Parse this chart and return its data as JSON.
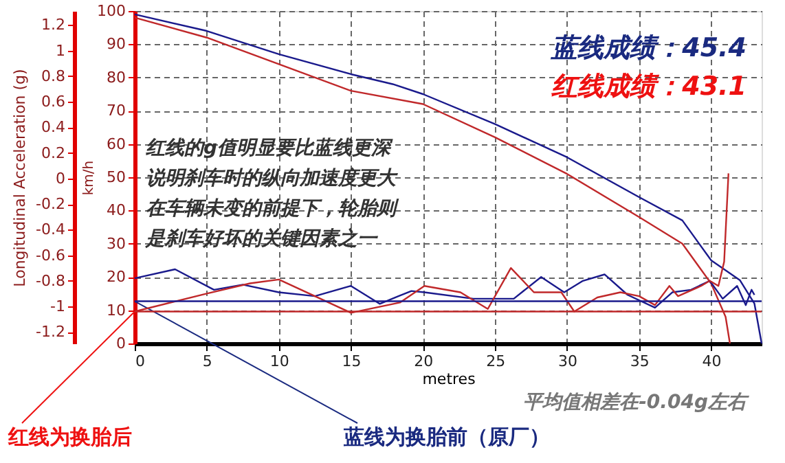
{
  "chart_data": {
    "type": "line",
    "xlabel": "metres",
    "ylabel": "km/h",
    "y2label": "Longitudinal Acceleration (g)",
    "xlim": [
      0,
      43.5
    ],
    "xticks": [
      0,
      5,
      10,
      15,
      20,
      25,
      30,
      35,
      40
    ],
    "ylim": [
      0,
      100
    ],
    "yticks": [
      0,
      10,
      20,
      30,
      40,
      50,
      60,
      70,
      80,
      90,
      100
    ],
    "y2lim": [
      -1.29,
      1.31
    ],
    "y2ticks": [
      -1.2,
      -1,
      -0.8,
      -0.6,
      -0.4,
      -0.2,
      0,
      0.2,
      0.4,
      0.6,
      0.8,
      1,
      1.2
    ],
    "grid": true,
    "marker": "none",
    "line_style": "solid",
    "series": [
      {
        "color": "#1a1a8c",
        "x": [
          0,
          5,
          10,
          15,
          17.9,
          20,
          25,
          30,
          35,
          38,
          40,
          42,
          43,
          43.5
        ],
        "values": [
          99,
          94,
          87,
          81,
          78,
          75,
          66,
          56,
          44,
          37,
          25,
          19,
          12,
          0
        ]
      },
      {
        "color": "#c0282a",
        "x": [
          0,
          5,
          10,
          15,
          20,
          25,
          30,
          35,
          38,
          40,
          41,
          41.3
        ],
        "values": [
          98,
          92,
          84,
          76,
          72,
          62,
          51,
          38,
          30,
          18,
          8,
          0
        ]
      },
      {
        "color": "#1a1a8c",
        "axis": "y2",
        "x": [
          0,
          2.8,
          5.5,
          7.5,
          10,
          12.5,
          15,
          17,
          18.3,
          19.2,
          20.1,
          23.5,
          26.3,
          28.2,
          29.8,
          31.1,
          32.6,
          34.2,
          36.1,
          37.3,
          38.6,
          39.9,
          40.8,
          41.8,
          42.4,
          42.8,
          43.0
        ],
        "values": [
          -0.78,
          -0.71,
          -0.87,
          -0.83,
          -0.89,
          -0.92,
          -0.84,
          -0.98,
          -0.92,
          -0.88,
          -0.89,
          -0.94,
          -0.94,
          -0.77,
          -0.89,
          -0.8,
          -0.75,
          -0.91,
          -1.01,
          -0.89,
          -0.87,
          -0.8,
          -0.94,
          -0.84,
          -0.99,
          -0.87,
          -0.91
        ]
      },
      {
        "color": "#c0282a",
        "axis": "y2",
        "x": [
          0,
          5,
          8,
          10,
          15,
          18.4,
          20.1,
          22.6,
          24.5,
          26.1,
          27.7,
          29.6,
          30.5,
          32.1,
          33.7,
          35,
          36.1,
          37.1,
          37.7,
          39.3,
          39.9,
          40.5,
          40.9,
          41.2
        ],
        "values": [
          -1.04,
          -0.9,
          -0.82,
          -0.79,
          -1.05,
          -0.97,
          -0.84,
          -0.89,
          -1.02,
          -0.7,
          -0.89,
          -0.89,
          -1.04,
          -0.93,
          -0.89,
          -0.92,
          -0.99,
          -0.84,
          -0.92,
          -0.84,
          -0.8,
          -0.84,
          -0.65,
          0.04
        ]
      }
    ],
    "ref_lines": [
      {
        "axis": "y2",
        "value": -0.96,
        "color": "#1a1a8c"
      },
      {
        "axis": "y2",
        "value": -1.04,
        "color": "#c0282a"
      }
    ],
    "annotations": [
      "红线的g值明显要比蓝线更深说明刹车时的纵向加速度更大在车辆未变的前提下，轮胎则是刹车好坏的关键因素之一",
      "蓝线成绩：45.4",
      "红线成绩：43.1",
      "平均值相差在-0.04g左右",
      {
        "text": "红线为换胎后",
        "x": 0,
        "y": 9.6
      },
      {
        "text": "蓝线为换胎前（原厂）",
        "x": 0,
        "y": 12.7
      }
    ]
  }
}
